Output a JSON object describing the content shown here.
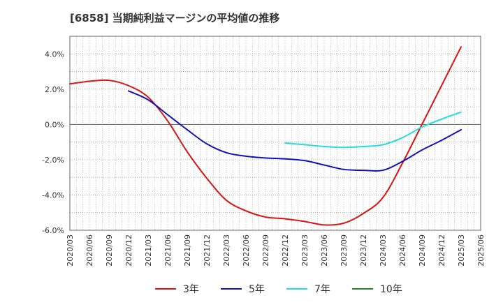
{
  "title": "[6858]  当期純利益マージンの平均値の推移",
  "colors": {
    "series_3y": "#dd1111",
    "series_5y": "#1111bb",
    "series_7y": "#22dddd",
    "series_10y": "#228822",
    "grid": "#999999",
    "zero": "#555555"
  },
  "chart_data": {
    "type": "line",
    "title": "[6858]  当期純利益マージンの平均値の推移",
    "xlabel": "",
    "ylabel": "",
    "ylim": [
      -6.0,
      5.0
    ],
    "yticks": [
      -6.0,
      -4.0,
      -2.0,
      0.0,
      2.0,
      4.0
    ],
    "ytick_labels": [
      "-6.0%",
      "-4.0%",
      "-2.0%",
      "0.0%",
      "2.0%",
      "4.0%"
    ],
    "x_ticks": [
      "2020/03",
      "2020/06",
      "2020/09",
      "2020/12",
      "2021/03",
      "2021/06",
      "2021/09",
      "2021/12",
      "2022/03",
      "2022/06",
      "2022/09",
      "2022/12",
      "2023/03",
      "2023/06",
      "2023/09",
      "2023/12",
      "2024/03",
      "2024/06",
      "2024/09",
      "2024/12",
      "2025/03",
      "2025/06"
    ],
    "grid": true,
    "legend_position": "bottom",
    "series": [
      {
        "name": "3年",
        "color_key": "series_3y",
        "points": [
          [
            "2020/03",
            2.3
          ],
          [
            "2020/06",
            2.45
          ],
          [
            "2020/09",
            2.5
          ],
          [
            "2020/12",
            2.2
          ],
          [
            "2021/03",
            1.55
          ],
          [
            "2021/06",
            0.2
          ],
          [
            "2021/09",
            -1.55
          ],
          [
            "2021/12",
            -3.05
          ],
          [
            "2022/03",
            -4.3
          ],
          [
            "2022/06",
            -4.9
          ],
          [
            "2022/09",
            -5.25
          ],
          [
            "2022/12",
            -5.35
          ],
          [
            "2023/03",
            -5.5
          ],
          [
            "2023/06",
            -5.7
          ],
          [
            "2023/09",
            -5.6
          ],
          [
            "2023/12",
            -5.05
          ],
          [
            "2024/03",
            -4.15
          ],
          [
            "2024/06",
            -2.2
          ],
          [
            "2024/09",
            0.0
          ],
          [
            "2024/12",
            2.2
          ],
          [
            "2025/03",
            4.4
          ]
        ]
      },
      {
        "name": "5年",
        "color_key": "series_5y",
        "points": [
          [
            "2020/12",
            1.9
          ],
          [
            "2021/03",
            1.4
          ],
          [
            "2021/06",
            0.55
          ],
          [
            "2021/09",
            -0.3
          ],
          [
            "2021/12",
            -1.1
          ],
          [
            "2022/03",
            -1.6
          ],
          [
            "2022/06",
            -1.8
          ],
          [
            "2022/09",
            -1.9
          ],
          [
            "2022/12",
            -1.95
          ],
          [
            "2023/03",
            -2.05
          ],
          [
            "2023/06",
            -2.3
          ],
          [
            "2023/09",
            -2.55
          ],
          [
            "2023/12",
            -2.6
          ],
          [
            "2024/03",
            -2.6
          ],
          [
            "2024/06",
            -2.1
          ],
          [
            "2024/09",
            -1.45
          ],
          [
            "2024/12",
            -0.9
          ],
          [
            "2025/03",
            -0.3
          ]
        ]
      },
      {
        "name": "7年",
        "color_key": "series_7y",
        "points": [
          [
            "2022/12",
            -1.05
          ],
          [
            "2023/03",
            -1.15
          ],
          [
            "2023/06",
            -1.25
          ],
          [
            "2023/09",
            -1.3
          ],
          [
            "2023/12",
            -1.25
          ],
          [
            "2024/03",
            -1.15
          ],
          [
            "2024/06",
            -0.75
          ],
          [
            "2024/09",
            -0.15
          ],
          [
            "2024/12",
            0.3
          ],
          [
            "2025/03",
            0.7
          ]
        ]
      },
      {
        "name": "10年",
        "color_key": "series_10y",
        "points": []
      }
    ]
  }
}
